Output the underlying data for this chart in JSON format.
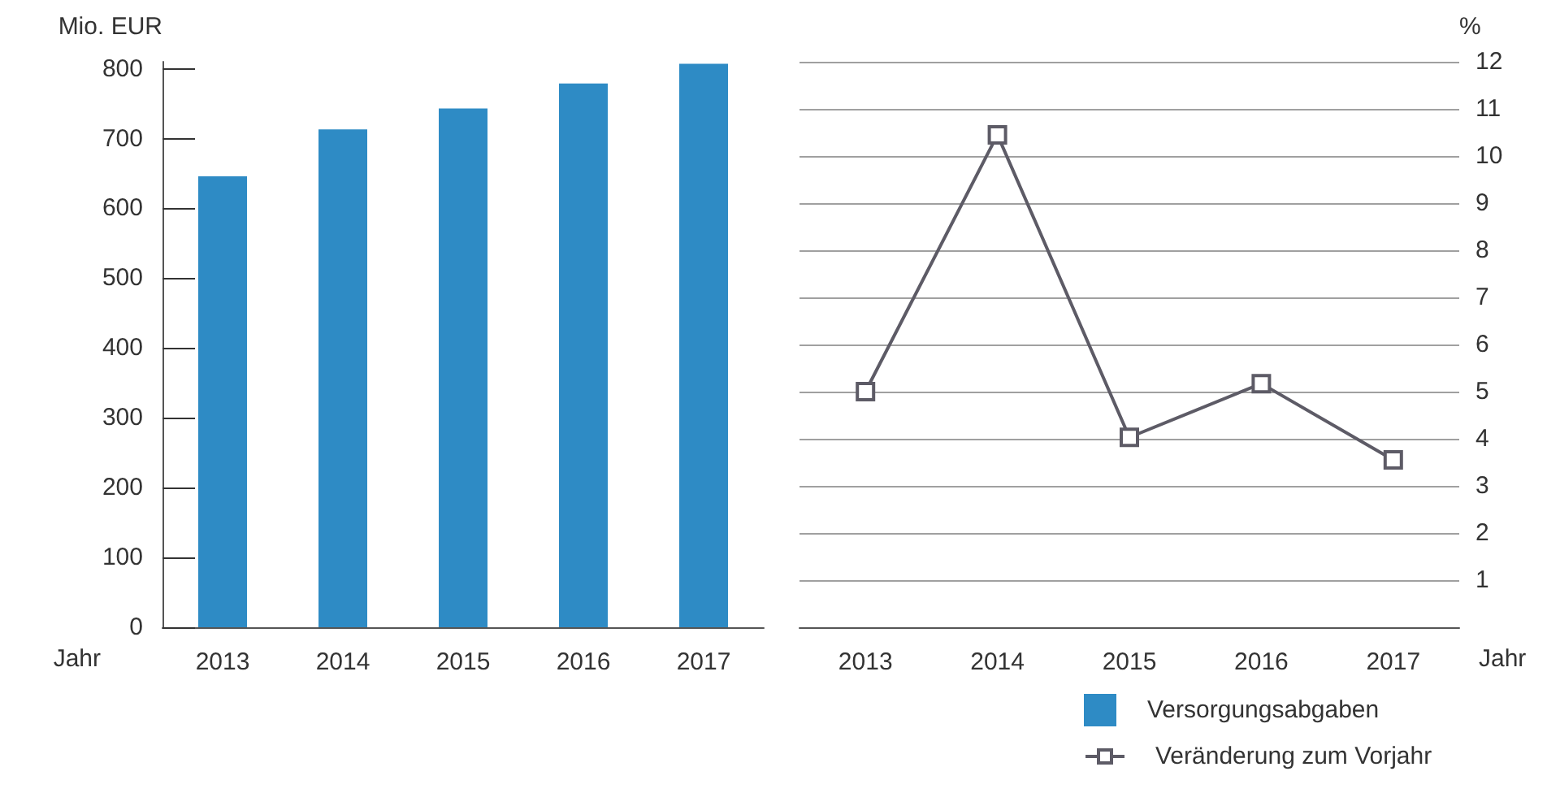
{
  "chart_data": [
    {
      "type": "bar",
      "ylabel": "Mio. EUR",
      "xlabel": "Jahr",
      "categories": [
        "2013",
        "2014",
        "2015",
        "2016",
        "2017"
      ],
      "series": [
        {
          "name": "Versorgungsabgaben",
          "color": "#2e8bc5",
          "values": [
            646,
            713,
            743,
            779,
            807
          ]
        }
      ],
      "ylim": [
        0,
        810
      ],
      "yticks": [
        0,
        100,
        200,
        300,
        400,
        500,
        600,
        700,
        800
      ],
      "grid": false,
      "legend": "bottom right"
    },
    {
      "type": "line",
      "y2label": "%",
      "xlabel": "Jahr",
      "categories": [
        "2013",
        "2014",
        "2015",
        "2016",
        "2017"
      ],
      "series": [
        {
          "name": "Veränderung zum Vorjahr",
          "color": "#5d5b66",
          "axis": "y2",
          "values": [
            5.0,
            10.45,
            4.03,
            5.17,
            3.55
          ]
        }
      ],
      "y2lim": [
        0,
        12
      ],
      "y2ticks": [
        1,
        2,
        3,
        4,
        5,
        6,
        7,
        8,
        9,
        10,
        11,
        12
      ],
      "grid": "y",
      "legend": "bottom right",
      "marker": "square",
      "line_style": "solid"
    }
  ]
}
